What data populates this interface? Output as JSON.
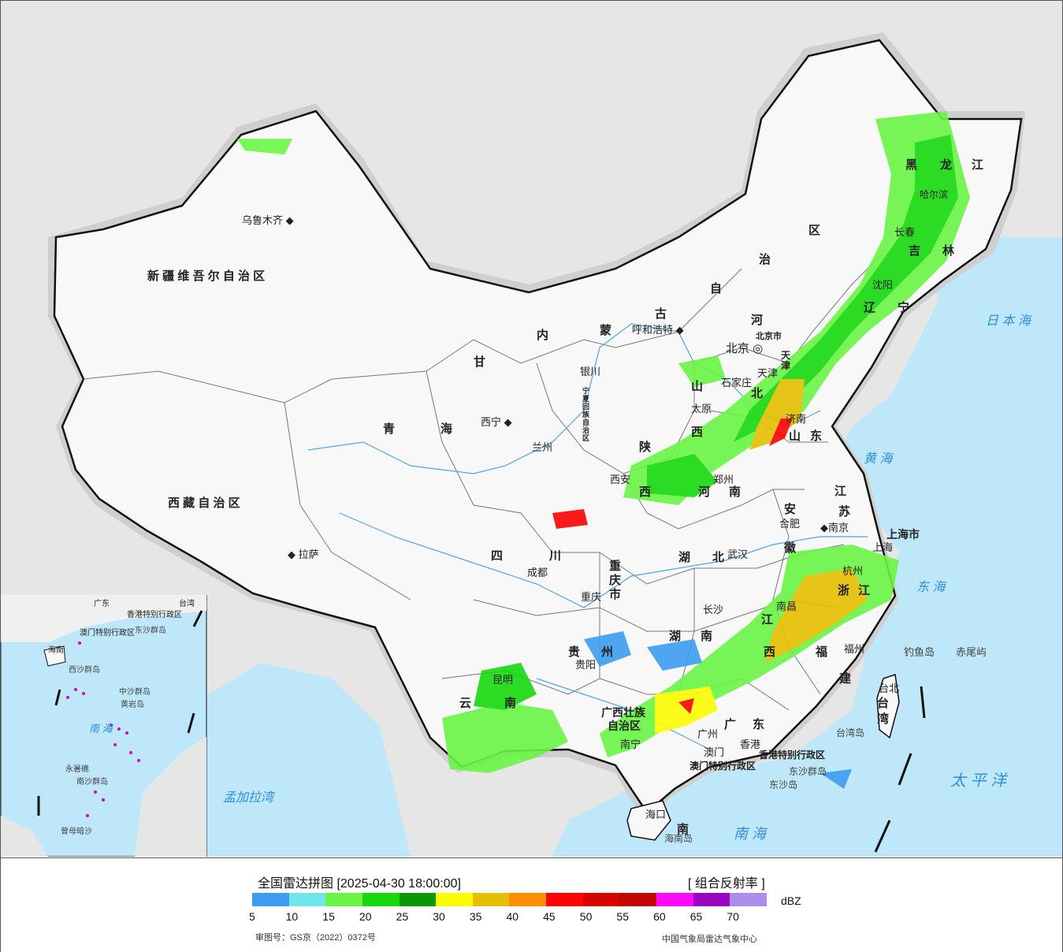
{
  "legend": {
    "title": "全国雷达拼图 [2025-04-30 18:00:00]",
    "product": "[ 组合反射率 ]",
    "unit": "dBZ",
    "colors": [
      "#3c9df0",
      "#6ee6ec",
      "#6af546",
      "#17d80c",
      "#0b9806",
      "#fdfd02",
      "#e5bf00",
      "#fc8f01",
      "#fd0302",
      "#d70402",
      "#c10605",
      "#fe08fe",
      "#9a06c0",
      "#ac8cec"
    ],
    "ticks": [
      "5",
      "10",
      "15",
      "20",
      "25",
      "30",
      "35",
      "40",
      "45",
      "50",
      "55",
      "60",
      "65",
      "70"
    ],
    "approval": "审图号：GS京（2022）0372号",
    "agency": "中国气象局雷达气象中心"
  },
  "provinces": {
    "xinjiang": "新 疆 维 吾 尔 自 治 区",
    "xizang": "西 藏 自 治 区",
    "qinghai_1": "青",
    "qinghai_2": "海",
    "gansu": "甘",
    "neimenggu_1": "内",
    "neimenggu_2": "蒙",
    "neimenggu_3": "古",
    "neimenggu_4": "自",
    "neimenggu_5": "治",
    "neimenggu_6": "区",
    "heilongjiang_1": "黑",
    "heilongjiang_2": "龙",
    "heilongjiang_3": "江",
    "jilin_1": "吉",
    "jilin_2": "林",
    "liaoning_1": "辽",
    "liaoning_2": "宁",
    "hebei_1": "河",
    "hebei_2": "北",
    "shanxi_1": "山",
    "shanxi_2": "西",
    "shandong_1": "山",
    "shandong_2": "东",
    "shaanxi_1": "陕",
    "shaanxi_2": "西",
    "henan_1": "河",
    "henan_2": "南",
    "jiangsu_1": "江",
    "jiangsu_2": "苏",
    "anhui_1": "安",
    "anhui_2": "徽",
    "sichuan_1": "四",
    "sichuan_2": "川",
    "hubei_1": "湖",
    "hubei_2": "北",
    "hunan_1": "湖",
    "hunan_2": "南",
    "jiangxi_1": "江",
    "jiangxi_2": "西",
    "zhejiang_1": "浙",
    "zhejiang_2": "江",
    "fujian_1": "福",
    "fujian_2": "建",
    "guizhou_1": "贵",
    "guizhou_2": "州",
    "yunnan_1": "云",
    "yunnan_2": "南",
    "guangxi_1": "广西壮族",
    "guangxi_2": "自治区",
    "guangdong_1": "广",
    "guangdong_2": "东",
    "hainan": "南",
    "taiwan_1": "台",
    "taiwan_2": "湾",
    "ningxia": "宁夏回族自治区",
    "chongqing": "重庆市",
    "shanghai": "上海市",
    "beijing": "北京市",
    "tianjin": "天津",
    "hongkong": "香港特别行政区",
    "macao": "澳门特别行政区"
  },
  "cities": {
    "urumqi": "乌鲁木齐",
    "lhasa": "拉萨",
    "xining": "西宁",
    "lanzhou": "兰州",
    "yinchuan": "银川",
    "hohhot": "呼和浩特",
    "beijing": "北京",
    "tianjin": "天津",
    "shijiazhuang": "石家庄",
    "taiyuan": "太原",
    "jinan": "济南",
    "xian": "西安",
    "zhengzhou": "郑州",
    "hefei": "合肥",
    "nanjing": "南京",
    "shanghai": "上海",
    "hangzhou": "杭州",
    "wuhan": "武汉",
    "chengdu": "成都",
    "chongqing": "重庆",
    "changsha": "长沙",
    "nanchang": "南昌",
    "fuzhou": "福州",
    "taibei": "台北",
    "guiyang": "贵阳",
    "kunming": "昆明",
    "nanning": "南宁",
    "guangzhou": "广州",
    "hongkong": "香港",
    "macao": "澳门",
    "haikou": "海口",
    "harbin": "哈尔滨",
    "changchun": "长春",
    "shenyang": "沈阳"
  },
  "seas": {
    "japan_sea": "日 本 海",
    "yellow_sea": "黄 海",
    "east_sea": "东 海",
    "pacific": "太 平 洋",
    "south_sea": "南 海",
    "bengal": "孟加拉湾"
  },
  "islands": {
    "diaoyu": "钓鱼岛",
    "chiwei": "赤尾屿",
    "taiwan_island": "台湾岛",
    "dongsha_islands": "东沙群岛",
    "dongsha_island": "东沙岛",
    "hainan_island": "海南岛"
  },
  "inset": {
    "sea": "南 海",
    "xisha": "西沙群岛",
    "zhongsha": "中沙群岛",
    "huangyan": "黄岩岛",
    "nansha": "南沙群岛",
    "dongsha": "东沙群岛",
    "hongkong": "香港特别行政区",
    "macao": "澳门特别行政区",
    "taiwan": "台湾",
    "hainan": "海南",
    "guangdong": "广东",
    "zengmu": "曾母暗沙",
    "yongshu": "永暑礁"
  }
}
